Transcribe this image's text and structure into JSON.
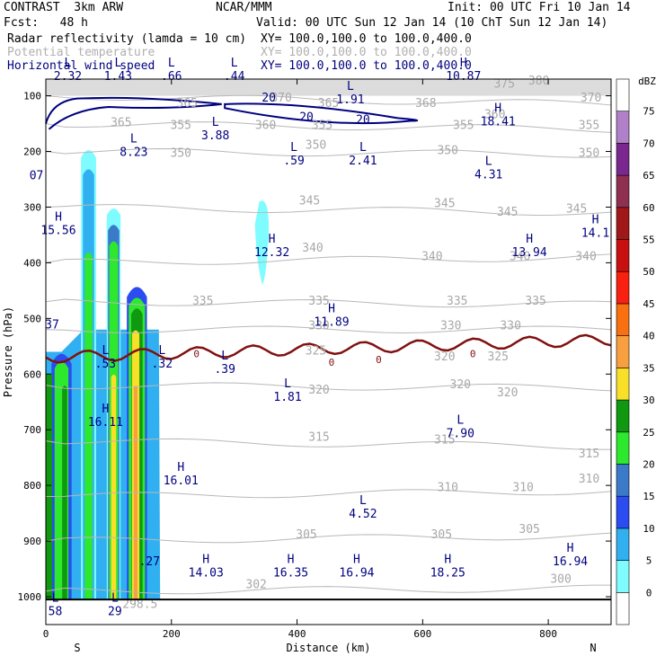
{
  "header": {
    "title": "CONTRAST  3km ARW",
    "org": "NCAR/MMM",
    "init": "Init: 00 UTC Fri 10 Jan 14",
    "fcst": "Fcst:   48 h",
    "valid": "Valid: 00 UTC Sun 12 Jan 14 (10 ChT Sun 12 Jan 14)",
    "fields": [
      {
        "name": "Radar reflectivity (lamda = 10 cm)",
        "xy": "XY= 100.0,100.0 to 100.0,400.0",
        "color": "#000000"
      },
      {
        "name": "Potential temperature",
        "xy": "XY= 100.0,100.0 to 100.0,400.0",
        "color": "#b0b0b0"
      },
      {
        "name": "Horizontal wind speed",
        "xy": "XY= 100.0,100.0 to 100.0,400.0",
        "color": "#000080"
      }
    ]
  },
  "chart_data": {
    "type": "contour",
    "xlabel": "Distance (km)",
    "ylabel": "Pressure (hPa)",
    "xlim": [
      0,
      900
    ],
    "ylim": [
      1050,
      70
    ],
    "x_ticks": [
      0,
      200,
      400,
      600,
      800
    ],
    "y_ticks": [
      100,
      200,
      300,
      400,
      500,
      600,
      700,
      800,
      900,
      1000
    ],
    "left_label": "S",
    "right_label": "N",
    "colorbar": {
      "unit": "dBZ",
      "levels": [
        0,
        5,
        10,
        15,
        20,
        25,
        30,
        35,
        40,
        45,
        50,
        55,
        60,
        65,
        70,
        75
      ],
      "colors": [
        "#ffffff",
        "#7ffcff",
        "#30b0f0",
        "#2a4cf0",
        "#3a7ac8",
        "#2ee82e",
        "#109810",
        "#f8e028",
        "#f8a040",
        "#f87010",
        "#f82010",
        "#c81010",
        "#a01818",
        "#903050",
        "#7a2890",
        "#b080c8",
        "#ffffff"
      ]
    },
    "theta_labels": [
      {
        "x": 375,
        "p": 110,
        "t": "370"
      },
      {
        "x": 225,
        "p": 120,
        "t": "365"
      },
      {
        "x": 450,
        "p": 120,
        "t": "365"
      },
      {
        "x": 605,
        "p": 120,
        "t": "368"
      },
      {
        "x": 730,
        "p": 85,
        "t": "375"
      },
      {
        "x": 785,
        "p": 80,
        "t": "380"
      },
      {
        "x": 868,
        "p": 110,
        "t": "370"
      },
      {
        "x": 715,
        "p": 140,
        "t": "360"
      },
      {
        "x": 120,
        "p": 155,
        "t": "365"
      },
      {
        "x": 215,
        "p": 160,
        "t": "355"
      },
      {
        "x": 440,
        "p": 160,
        "t": "355"
      },
      {
        "x": 350,
        "p": 160,
        "t": "360"
      },
      {
        "x": 665,
        "p": 160,
        "t": "355"
      },
      {
        "x": 865,
        "p": 160,
        "t": "355"
      },
      {
        "x": 430,
        "p": 195,
        "t": "350"
      },
      {
        "x": 215,
        "p": 210,
        "t": "350"
      },
      {
        "x": 640,
        "p": 205,
        "t": "350"
      },
      {
        "x": 865,
        "p": 210,
        "t": "350"
      },
      {
        "x": 420,
        "p": 295,
        "t": "345"
      },
      {
        "x": 635,
        "p": 300,
        "t": "345"
      },
      {
        "x": 735,
        "p": 315,
        "t": "345"
      },
      {
        "x": 845,
        "p": 310,
        "t": "345"
      },
      {
        "x": 425,
        "p": 380,
        "t": "340"
      },
      {
        "x": 615,
        "p": 395,
        "t": "340"
      },
      {
        "x": 755,
        "p": 395,
        "t": "340"
      },
      {
        "x": 860,
        "p": 395,
        "t": "340"
      },
      {
        "x": 250,
        "p": 475,
        "t": "335"
      },
      {
        "x": 435,
        "p": 475,
        "t": "335"
      },
      {
        "x": 655,
        "p": 475,
        "t": "335"
      },
      {
        "x": 780,
        "p": 475,
        "t": "335"
      },
      {
        "x": 435,
        "p": 520,
        "t": "330"
      },
      {
        "x": 645,
        "p": 520,
        "t": "330"
      },
      {
        "x": 740,
        "p": 520,
        "t": "330"
      },
      {
        "x": 430,
        "p": 565,
        "t": "325"
      },
      {
        "x": 635,
        "p": 575,
        "t": "320"
      },
      {
        "x": 720,
        "p": 575,
        "t": "325"
      },
      {
        "x": 435,
        "p": 635,
        "t": "320"
      },
      {
        "x": 660,
        "p": 625,
        "t": "320"
      },
      {
        "x": 735,
        "p": 640,
        "t": "320"
      },
      {
        "x": 435,
        "p": 720,
        "t": "315"
      },
      {
        "x": 635,
        "p": 725,
        "t": "315"
      },
      {
        "x": 865,
        "p": 750,
        "t": "315"
      },
      {
        "x": 640,
        "p": 810,
        "t": "310"
      },
      {
        "x": 760,
        "p": 810,
        "t": "310"
      },
      {
        "x": 865,
        "p": 795,
        "t": "310"
      },
      {
        "x": 415,
        "p": 895,
        "t": "305"
      },
      {
        "x": 630,
        "p": 895,
        "t": "305"
      },
      {
        "x": 770,
        "p": 885,
        "t": "305"
      },
      {
        "x": 335,
        "p": 985,
        "t": "302"
      },
      {
        "x": 820,
        "p": 975,
        "t": "300"
      },
      {
        "x": 150,
        "p": 1020,
        "t": "298.5"
      }
    ],
    "extrema": [
      {
        "x": 35,
        "p": 68,
        "m": "L",
        "v": "2.32"
      },
      {
        "x": 115,
        "p": 68,
        "m": "L",
        "v": "1.43"
      },
      {
        "x": 200,
        "p": 68,
        "m": "L",
        "v": ".66"
      },
      {
        "x": 300,
        "p": 68,
        "m": "L",
        "v": ".44"
      },
      {
        "x": 665,
        "p": 68,
        "m": "H",
        "v": "10.87"
      },
      {
        "x": 485,
        "p": 110,
        "m": "L",
        "v": "1.91"
      },
      {
        "x": 720,
        "p": 150,
        "m": "H",
        "v": "18.41"
      },
      {
        "x": 270,
        "p": 175,
        "m": "L",
        "v": "3.88"
      },
      {
        "x": 140,
        "p": 205,
        "m": "L",
        "v": "8.23"
      },
      {
        "x": 395,
        "p": 220,
        "m": "L",
        "v": ".59"
      },
      {
        "x": 505,
        "p": 220,
        "m": "L",
        "v": "2.41"
      },
      {
        "x": 705,
        "p": 245,
        "m": "L",
        "v": "4.31"
      },
      {
        "x": -15,
        "p": 247,
        "m": "",
        "v": "07"
      },
      {
        "x": 20,
        "p": 345,
        "m": "H",
        "v": "15.56"
      },
      {
        "x": 360,
        "p": 385,
        "m": "H",
        "v": "12.32"
      },
      {
        "x": 770,
        "p": 385,
        "m": "H",
        "v": "13.94"
      },
      {
        "x": 875,
        "p": 350,
        "m": "H",
        "v": "14.1"
      },
      {
        "x": 10,
        "p": 515,
        "m": "",
        "v": "37"
      },
      {
        "x": 455,
        "p": 510,
        "m": "H",
        "v": "11.89"
      },
      {
        "x": 95,
        "p": 585,
        "m": "L",
        "v": ".53"
      },
      {
        "x": 185,
        "p": 585,
        "m": "L",
        "v": ".32"
      },
      {
        "x": 285,
        "p": 595,
        "m": "L",
        "v": ".39"
      },
      {
        "x": 385,
        "p": 645,
        "m": "L",
        "v": "1.81"
      },
      {
        "x": 95,
        "p": 690,
        "m": "H",
        "v": "16.11"
      },
      {
        "x": 660,
        "p": 710,
        "m": "L",
        "v": "7.90"
      },
      {
        "x": 215,
        "p": 795,
        "m": "H",
        "v": "16.01"
      },
      {
        "x": 505,
        "p": 855,
        "m": "L",
        "v": "4.52"
      },
      {
        "x": 165,
        "p": 940,
        "m": "",
        "v": ".27"
      },
      {
        "x": 255,
        "p": 960,
        "m": "H",
        "v": "14.03"
      },
      {
        "x": 390,
        "p": 960,
        "m": "H",
        "v": "16.35"
      },
      {
        "x": 495,
        "p": 960,
        "m": "H",
        "v": "16.94"
      },
      {
        "x": 640,
        "p": 960,
        "m": "H",
        "v": "18.25"
      },
      {
        "x": 835,
        "p": 940,
        "m": "H",
        "v": "16.94"
      },
      {
        "x": 15,
        "p": 1030,
        "m": "L",
        "v": "58"
      },
      {
        "x": 110,
        "p": 1030,
        "m": "L",
        "v": "29"
      }
    ],
    "wind_20_labels": [
      {
        "x": 355,
        "p": 110,
        "t": "20"
      },
      {
        "x": 415,
        "p": 145,
        "t": "20"
      },
      {
        "x": 505,
        "p": 150,
        "t": "20"
      }
    ],
    "zero_isotherm_labels": [
      {
        "x": 240,
        "p": 570,
        "t": "0"
      },
      {
        "x": 455,
        "p": 585,
        "t": "0"
      },
      {
        "x": 530,
        "p": 580,
        "t": "0"
      },
      {
        "x": 680,
        "p": 570,
        "t": "0"
      }
    ]
  }
}
